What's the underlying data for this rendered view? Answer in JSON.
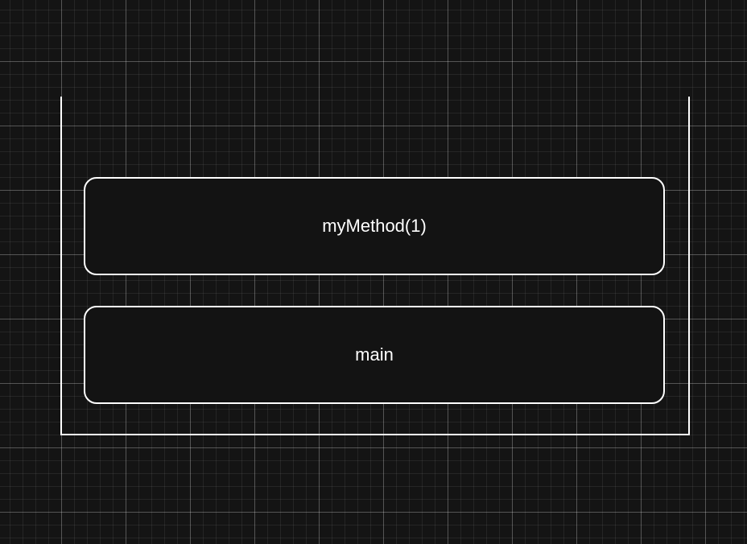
{
  "call_stack": {
    "frames": [
      {
        "label": "myMethod(1)"
      },
      {
        "label": "main"
      }
    ]
  },
  "colors": {
    "background": "#141414",
    "stroke": "#ffffff",
    "text": "#ffffff"
  }
}
